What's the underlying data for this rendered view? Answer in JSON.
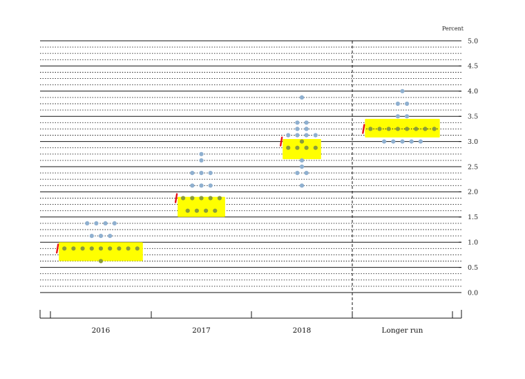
{
  "chart_data": {
    "type": "scatter",
    "unit_label": "Percent",
    "y_axis": {
      "min": 0.0,
      "max": 5.0,
      "major_step": 0.5,
      "minor_step": 0.125,
      "tick_labels": [
        "0.0",
        "0.5",
        "1.0",
        "1.5",
        "2.0",
        "2.5",
        "3.0",
        "3.5",
        "4.0",
        "4.5",
        "5.0"
      ],
      "position": "right"
    },
    "categories": [
      "2016",
      "2017",
      "2018",
      "Longer run"
    ],
    "grid": true,
    "colors": {
      "dot": "#8fb0d0",
      "highlight": "#ffff00",
      "marker": "#e8101a",
      "line": "#111111"
    },
    "columns": [
      {
        "category": "2016",
        "dots": [
          {
            "y": 1.375,
            "count": 4
          },
          {
            "y": 1.125,
            "count": 3
          },
          {
            "y": 0.875,
            "count": 9
          },
          {
            "y": 0.625,
            "count": 1
          }
        ],
        "highlight": [
          0.625,
          1.0
        ],
        "marker_y": 0.875
      },
      {
        "category": "2017",
        "dots": [
          {
            "y": 2.625,
            "count": 1
          },
          {
            "y": 2.75,
            "count": 1
          },
          {
            "y": 2.375,
            "count": 3
          },
          {
            "y": 2.125,
            "count": 3
          },
          {
            "y": 1.875,
            "count": 5
          },
          {
            "y": 1.625,
            "count": 4
          }
        ],
        "highlight": [
          1.5,
          1.9
        ],
        "marker_y": 1.875
      },
      {
        "category": "2018",
        "dots": [
          {
            "y": 3.875,
            "count": 1
          },
          {
            "y": 3.375,
            "count": 2
          },
          {
            "y": 3.25,
            "count": 2
          },
          {
            "y": 3.125,
            "count": 4
          },
          {
            "y": 3.0,
            "count": 1
          },
          {
            "y": 2.875,
            "count": 4
          },
          {
            "y": 2.625,
            "count": 1
          },
          {
            "y": 2.5,
            "count": 1
          },
          {
            "y": 2.375,
            "count": 2
          },
          {
            "y": 2.125,
            "count": 1
          }
        ],
        "highlight": [
          2.65,
          3.05
        ],
        "marker_y": 3.0
      },
      {
        "category": "Longer run",
        "dots": [
          {
            "y": 4.0,
            "count": 1
          },
          {
            "y": 3.75,
            "count": 2
          },
          {
            "y": 3.5,
            "count": 2
          },
          {
            "y": 3.25,
            "count": 8
          },
          {
            "y": 3.0,
            "count": 5
          }
        ],
        "highlight": [
          3.08,
          3.45
        ],
        "marker_y": 3.25,
        "median_line": true
      }
    ]
  }
}
